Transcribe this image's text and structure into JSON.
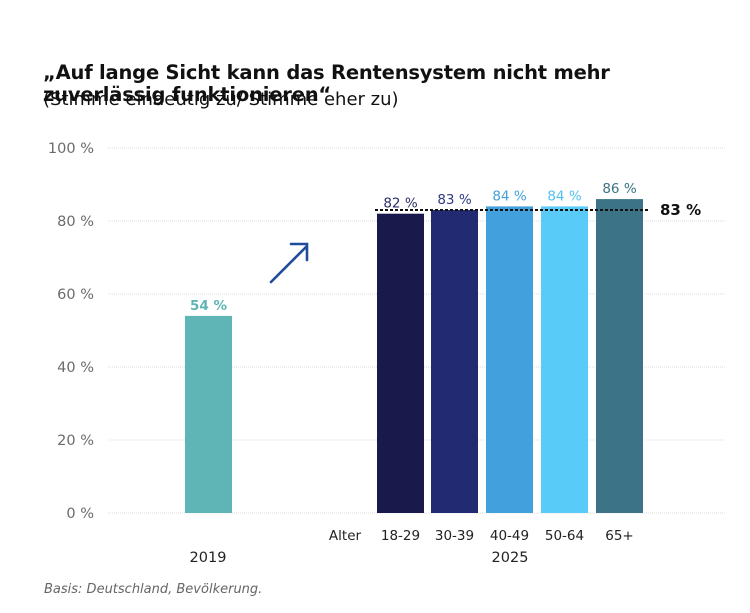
{
  "chart_data": {
    "type": "bar",
    "title": "„Auf lange Sicht kann das Rentensystem nicht mehr zuverlässig funktionieren“",
    "subtitle": "(Stimme eindeutig zu/ Stimme eher zu)",
    "xlabel": "",
    "ylabel": "",
    "ylim": [
      0,
      100
    ],
    "yticks": [
      0,
      20,
      40,
      60,
      80,
      100
    ],
    "ytick_labels": [
      "0 %",
      "20 %",
      "40 %",
      "60 %",
      "80 %",
      "100 %"
    ],
    "grid": true,
    "categories_prefix": "Alter",
    "groups": [
      {
        "label": "2019",
        "bars": [
          {
            "category": "",
            "value": 54,
            "label": "54 %",
            "color": "#5fb5b6",
            "label_color": "#5fb5b6",
            "label_bold": true
          }
        ]
      },
      {
        "label": "2025",
        "bars": [
          {
            "category": "18-29",
            "value": 82,
            "label": "82 %",
            "color": "#19194c",
            "label_color": "#2e2e6a"
          },
          {
            "category": "30-39",
            "value": 83,
            "label": "83 %",
            "color": "#222a72",
            "label_color": "#2e3a80"
          },
          {
            "category": "40-49",
            "value": 84,
            "label": "84 %",
            "color": "#42a0dc",
            "label_color": "#42a0dc"
          },
          {
            "category": "50-64",
            "value": 84,
            "label": "84 %",
            "color": "#59cbf8",
            "label_color": "#4fc2f0"
          },
          {
            "category": "65+",
            "value": 86,
            "label": "86 %",
            "color": "#3c7386",
            "label_color": "#3c7386"
          }
        ]
      }
    ],
    "reference_line": {
      "value": 83,
      "label": "83 %",
      "style": "dotted",
      "color": "#111111"
    },
    "annotation": {
      "type": "arrow",
      "direction": "up-right",
      "color": "#1f4c9a"
    }
  },
  "footnote": "Basis: Deutschland, Bevölkerung."
}
